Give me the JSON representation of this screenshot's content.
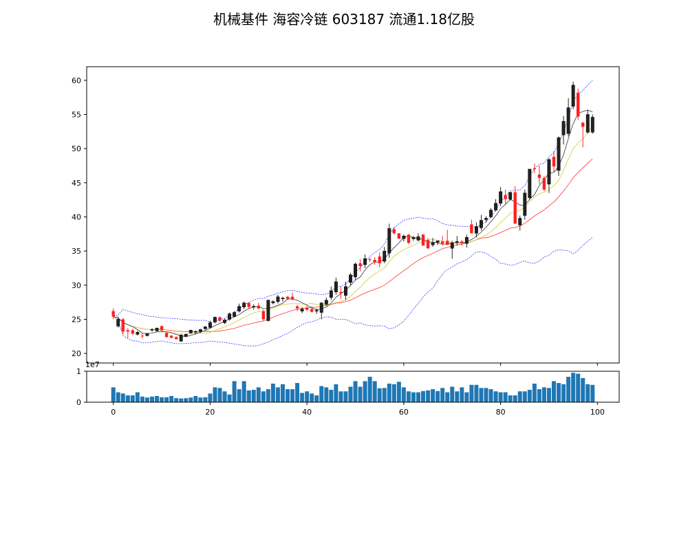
{
  "chart_data": {
    "type": "candlestick",
    "title": "机械基件 海容冷链 603187 流通1.18亿股",
    "x": {
      "ticks": [
        0,
        20,
        40,
        60,
        80,
        100
      ],
      "range": [
        -5.5,
        104.5
      ]
    },
    "price_axis": {
      "ticks": [
        20,
        25,
        30,
        35,
        40,
        45,
        50,
        55,
        60
      ],
      "range": [
        18.6,
        62
      ]
    },
    "volume_axis": {
      "ticks": [
        0,
        1
      ],
      "range": [
        0,
        1.0
      ],
      "scale_label": "1e7"
    },
    "colors": {
      "up": "#222222",
      "down": "#ff2020",
      "ma5": "#333333",
      "ma10": "#cccc33",
      "ma20": "#ff3333",
      "boll": "#3333ff",
      "volume": "#1f77b4"
    },
    "ohlc": [
      [
        26.2,
        26.6,
        25.0,
        25.4
      ],
      [
        24.0,
        25.4,
        23.8,
        25.0
      ],
      [
        25.0,
        25.2,
        22.8,
        23.2
      ],
      [
        23.4,
        23.7,
        22.3,
        23.2
      ],
      [
        23.4,
        23.6,
        22.7,
        22.9
      ],
      [
        22.8,
        23.3,
        22.6,
        23.1
      ],
      [
        22.6,
        23.0,
        22.2,
        22.5
      ],
      [
        22.6,
        23.0,
        22.5,
        22.9
      ],
      [
        23.4,
        23.7,
        23.2,
        23.5
      ],
      [
        23.3,
        23.8,
        23.2,
        23.7
      ],
      [
        24.0,
        24.1,
        23.2,
        23.4
      ],
      [
        23.0,
        23.2,
        22.3,
        22.4
      ],
      [
        22.6,
        22.7,
        22.2,
        22.3
      ],
      [
        22.4,
        22.5,
        22.0,
        22.1
      ],
      [
        21.8,
        22.8,
        21.7,
        22.7
      ],
      [
        22.5,
        22.9,
        22.4,
        22.8
      ],
      [
        23.0,
        23.5,
        22.9,
        23.4
      ],
      [
        23.1,
        23.4,
        22.8,
        23.2
      ],
      [
        23.2,
        23.6,
        23.0,
        23.5
      ],
      [
        23.6,
        24.0,
        23.5,
        23.9
      ],
      [
        23.8,
        24.8,
        23.6,
        24.5
      ],
      [
        24.6,
        25.4,
        24.4,
        25.3
      ],
      [
        25.3,
        25.4,
        24.6,
        24.8
      ],
      [
        24.5,
        25.1,
        24.3,
        24.9
      ],
      [
        25.0,
        26.0,
        24.8,
        25.8
      ],
      [
        25.4,
        26.2,
        25.3,
        26.0
      ],
      [
        26.2,
        27.3,
        26.0,
        26.9
      ],
      [
        26.8,
        27.6,
        26.5,
        27.4
      ],
      [
        27.4,
        27.5,
        26.5,
        26.8
      ],
      [
        26.8,
        27.2,
        26.4,
        26.9
      ],
      [
        27.0,
        27.4,
        26.5,
        26.6
      ],
      [
        26.2,
        26.4,
        24.7,
        25.0
      ],
      [
        24.8,
        27.9,
        24.7,
        27.8
      ],
      [
        27.4,
        27.8,
        27.2,
        27.6
      ],
      [
        27.6,
        28.6,
        27.3,
        28.3
      ],
      [
        28.0,
        28.3,
        27.6,
        28.1
      ],
      [
        28.3,
        28.4,
        27.8,
        28.0
      ],
      [
        28.3,
        28.9,
        27.8,
        27.9
      ],
      [
        26.9,
        27.1,
        26.2,
        26.6
      ],
      [
        26.2,
        26.8,
        25.9,
        26.5
      ],
      [
        26.7,
        27.1,
        26.2,
        26.4
      ],
      [
        26.5,
        26.9,
        26.0,
        26.1
      ],
      [
        26.2,
        26.6,
        25.8,
        26.3
      ],
      [
        26.0,
        27.5,
        25.0,
        27.4
      ],
      [
        27.2,
        28.2,
        27.0,
        27.8
      ],
      [
        28.2,
        29.8,
        27.8,
        29.2
      ],
      [
        29.0,
        31.1,
        28.6,
        30.5
      ],
      [
        29.0,
        29.8,
        28.0,
        28.8
      ],
      [
        28.5,
        30.5,
        27.8,
        29.8
      ],
      [
        30.4,
        31.8,
        30.0,
        31.5
      ],
      [
        31.2,
        33.3,
        30.8,
        33.1
      ],
      [
        33.2,
        33.8,
        32.0,
        32.8
      ],
      [
        33.0,
        34.5,
        32.5,
        33.9
      ],
      [
        33.8,
        34.0,
        33.4,
        33.7
      ],
      [
        33.7,
        34.1,
        33.0,
        33.4
      ],
      [
        34.2,
        34.8,
        32.6,
        33.2
      ],
      [
        33.5,
        35.6,
        33.2,
        35.0
      ],
      [
        34.7,
        39.0,
        34.0,
        38.3
      ],
      [
        38.2,
        38.5,
        37.4,
        37.6
      ],
      [
        37.6,
        37.6,
        36.8,
        36.8
      ],
      [
        36.8,
        37.4,
        36.4,
        37.2
      ],
      [
        37.4,
        37.5,
        36.0,
        36.2
      ],
      [
        36.8,
        37.2,
        36.5,
        37.0
      ],
      [
        36.6,
        37.6,
        36.4,
        37.1
      ],
      [
        37.4,
        37.5,
        35.8,
        35.8
      ],
      [
        36.6,
        36.9,
        35.3,
        35.4
      ],
      [
        35.9,
        36.9,
        35.6,
        36.2
      ],
      [
        36.3,
        36.5,
        35.9,
        36.5
      ],
      [
        36.4,
        37.2,
        35.8,
        36.1
      ],
      [
        36.5,
        38.1,
        35.9,
        35.9
      ],
      [
        35.4,
        36.5,
        33.9,
        36.2
      ],
      [
        36.3,
        37.2,
        35.8,
        36.4
      ],
      [
        36.4,
        36.6,
        35.8,
        36.2
      ],
      [
        36.1,
        37.4,
        35.5,
        37.0
      ],
      [
        38.9,
        39.6,
        37.6,
        37.6
      ],
      [
        37.6,
        39.2,
        37.0,
        38.6
      ],
      [
        38.4,
        40.3,
        38.0,
        39.5
      ],
      [
        39.6,
        40.1,
        39.2,
        39.8
      ],
      [
        40.0,
        41.3,
        39.8,
        41.0
      ],
      [
        41.0,
        42.6,
        40.8,
        42.0
      ],
      [
        42.0,
        44.4,
        41.6,
        43.7
      ],
      [
        43.2,
        44.0,
        41.8,
        42.6
      ],
      [
        42.6,
        43.5,
        42.4,
        43.6
      ],
      [
        43.6,
        44.5,
        39.0,
        39.0
      ],
      [
        38.8,
        40.2,
        38.0,
        39.8
      ],
      [
        40.2,
        44.0,
        39.6,
        43.5
      ],
      [
        42.8,
        47.0,
        42.5,
        47.0
      ],
      [
        47.1,
        47.8,
        46.4,
        47.0
      ],
      [
        46.2,
        47.5,
        44.8,
        45.7
      ],
      [
        45.7,
        46.0,
        43.8,
        44.0
      ],
      [
        44.8,
        48.6,
        43.5,
        48.4
      ],
      [
        48.8,
        49.6,
        46.5,
        47.4
      ],
      [
        46.8,
        51.8,
        46.0,
        51.6
      ],
      [
        52.0,
        54.8,
        50.6,
        54.0
      ],
      [
        52.2,
        57.4,
        51.8,
        56.0
      ],
      [
        56.2,
        59.8,
        55.8,
        59.3
      ],
      [
        58.2,
        58.8,
        54.2,
        54.7
      ],
      [
        53.8,
        53.9,
        50.2,
        53.2
      ],
      [
        52.4,
        55.7,
        52.2,
        55.0
      ],
      [
        52.4,
        55.0,
        52.2,
        54.6
      ]
    ],
    "volume": [
      0.48,
      0.32,
      0.28,
      0.22,
      0.22,
      0.32,
      0.18,
      0.15,
      0.18,
      0.2,
      0.16,
      0.16,
      0.2,
      0.13,
      0.12,
      0.13,
      0.15,
      0.2,
      0.15,
      0.16,
      0.28,
      0.48,
      0.46,
      0.35,
      0.25,
      0.68,
      0.42,
      0.68,
      0.38,
      0.4,
      0.48,
      0.35,
      0.42,
      0.6,
      0.48,
      0.58,
      0.42,
      0.42,
      0.62,
      0.3,
      0.35,
      0.28,
      0.22,
      0.52,
      0.48,
      0.4,
      0.58,
      0.35,
      0.35,
      0.5,
      0.68,
      0.5,
      0.68,
      0.82,
      0.68,
      0.45,
      0.46,
      0.6,
      0.58,
      0.66,
      0.48,
      0.35,
      0.32,
      0.32,
      0.36,
      0.38,
      0.42,
      0.36,
      0.46,
      0.32,
      0.5,
      0.35,
      0.48,
      0.32,
      0.56,
      0.56,
      0.46,
      0.46,
      0.42,
      0.35,
      0.32,
      0.32,
      0.22,
      0.22,
      0.35,
      0.35,
      0.4,
      0.6,
      0.42,
      0.48,
      0.46,
      0.68,
      0.62,
      0.58,
      0.82,
      0.95,
      0.92,
      0.78,
      0.58,
      0.56
    ]
  }
}
